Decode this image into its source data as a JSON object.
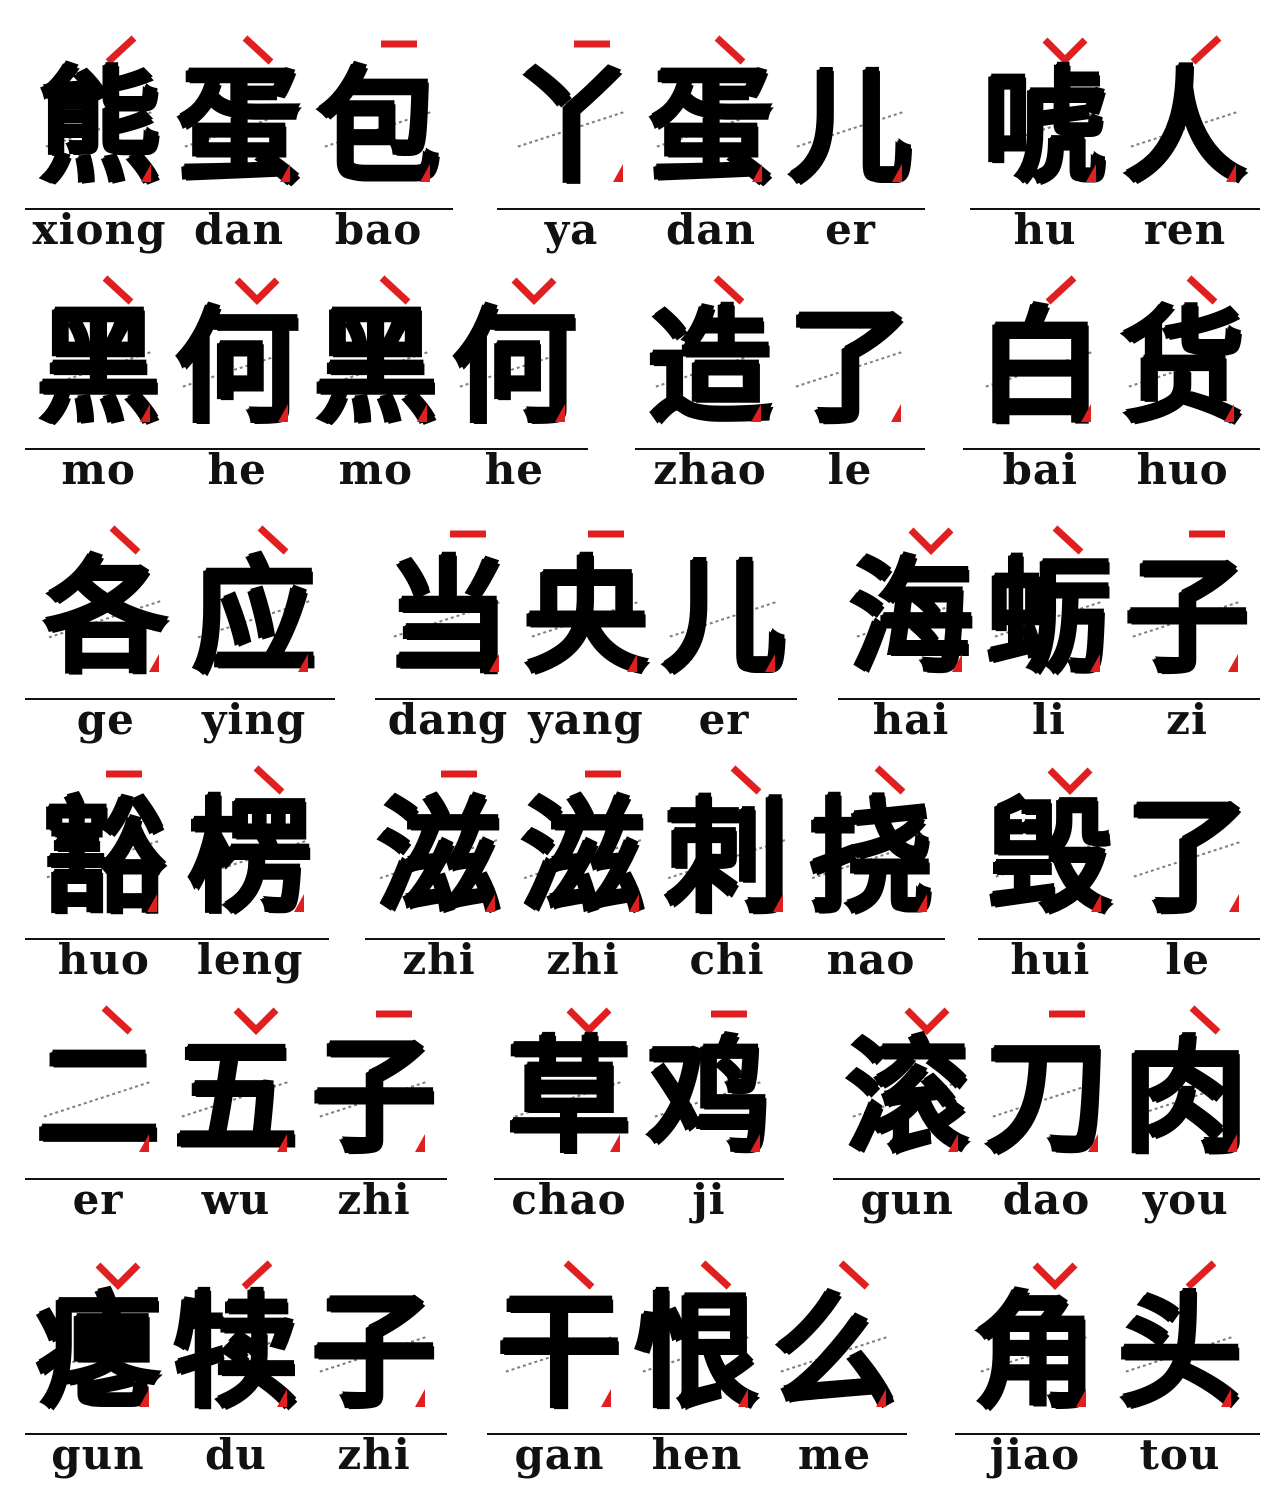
{
  "accent_color": "#e02020",
  "ink_color": "#000000",
  "words": [
    {
      "chars": [
        {
          "char": "熊",
          "pinyin": "xiong",
          "tone": 2
        },
        {
          "char": "蛋",
          "pinyin": "dan",
          "tone": 4
        },
        {
          "char": "包",
          "pinyin": "bao",
          "tone": 1
        }
      ]
    },
    {
      "chars": [
        {
          "char": "丫",
          "pinyin": "ya",
          "tone": 1
        },
        {
          "char": "蛋",
          "pinyin": "dan",
          "tone": 4
        },
        {
          "char": "儿",
          "pinyin": "er",
          "tone": 0
        }
      ]
    },
    {
      "chars": [
        {
          "char": "唬",
          "pinyin": "hu",
          "tone": 3
        },
        {
          "char": "人",
          "pinyin": "ren",
          "tone": 2
        }
      ]
    },
    {
      "chars": [
        {
          "char": "黑",
          "pinyin": "mo",
          "tone": 4
        },
        {
          "char": "何",
          "pinyin": "he",
          "tone": 3
        },
        {
          "char": "黑",
          "pinyin": "mo",
          "tone": 4
        },
        {
          "char": "何",
          "pinyin": "he",
          "tone": 3
        }
      ]
    },
    {
      "chars": [
        {
          "char": "造",
          "pinyin": "zhao",
          "tone": 4
        },
        {
          "char": "了",
          "pinyin": "le",
          "tone": 0
        }
      ]
    },
    {
      "chars": [
        {
          "char": "白",
          "pinyin": "bai",
          "tone": 2
        },
        {
          "char": "货",
          "pinyin": "huo",
          "tone": 4
        }
      ]
    },
    {
      "chars": [
        {
          "char": "各",
          "pinyin": "ge",
          "tone": 4
        },
        {
          "char": "应",
          "pinyin": "ying",
          "tone": 4
        }
      ]
    },
    {
      "chars": [
        {
          "char": "当",
          "pinyin": "dang",
          "tone": 1
        },
        {
          "char": "央",
          "pinyin": "yang",
          "tone": 1
        },
        {
          "char": "儿",
          "pinyin": "er",
          "tone": 0
        }
      ]
    },
    {
      "chars": [
        {
          "char": "海",
          "pinyin": "hai",
          "tone": 3
        },
        {
          "char": "蛎",
          "pinyin": "li",
          "tone": 4
        },
        {
          "char": "子",
          "pinyin": "zi",
          "tone": 1
        }
      ]
    },
    {
      "chars": [
        {
          "char": "豁",
          "pinyin": "huo",
          "tone": 1
        },
        {
          "char": "楞",
          "pinyin": "leng",
          "tone": 4
        }
      ]
    },
    {
      "chars": [
        {
          "char": "滋",
          "pinyin": "zhi",
          "tone": 1
        },
        {
          "char": "滋",
          "pinyin": "zhi",
          "tone": 1
        },
        {
          "char": "刺",
          "pinyin": "chi",
          "tone": 4
        },
        {
          "char": "挠",
          "pinyin": "nao",
          "tone": 4
        }
      ]
    },
    {
      "chars": [
        {
          "char": "毁",
          "pinyin": "hui",
          "tone": 3
        },
        {
          "char": "了",
          "pinyin": "le",
          "tone": 0
        }
      ]
    },
    {
      "chars": [
        {
          "char": "二",
          "pinyin": "er",
          "tone": 4
        },
        {
          "char": "五",
          "pinyin": "wu",
          "tone": 3
        },
        {
          "char": "子",
          "pinyin": "zhi",
          "tone": 1
        }
      ]
    },
    {
      "chars": [
        {
          "char": "草",
          "pinyin": "chao",
          "tone": 3
        },
        {
          "char": "鸡",
          "pinyin": "ji",
          "tone": 1
        }
      ]
    },
    {
      "chars": [
        {
          "char": "滚",
          "pinyin": "gun",
          "tone": 3
        },
        {
          "char": "刀",
          "pinyin": "dao",
          "tone": 1
        },
        {
          "char": "肉",
          "pinyin": "you",
          "tone": 4
        }
      ]
    },
    {
      "chars": [
        {
          "char": "瘪",
          "pinyin": "gun",
          "tone": 3
        },
        {
          "char": "犊",
          "pinyin": "du",
          "tone": 2
        },
        {
          "char": "子",
          "pinyin": "zhi",
          "tone": 0
        }
      ]
    },
    {
      "chars": [
        {
          "char": "干",
          "pinyin": "gan",
          "tone": 4
        },
        {
          "char": "恨",
          "pinyin": "hen",
          "tone": 4
        },
        {
          "char": "么",
          "pinyin": "me",
          "tone": 4
        }
      ]
    },
    {
      "chars": [
        {
          "char": "角",
          "pinyin": "jiao",
          "tone": 3
        },
        {
          "char": "头",
          "pinyin": "tou",
          "tone": 2
        }
      ]
    }
  ]
}
